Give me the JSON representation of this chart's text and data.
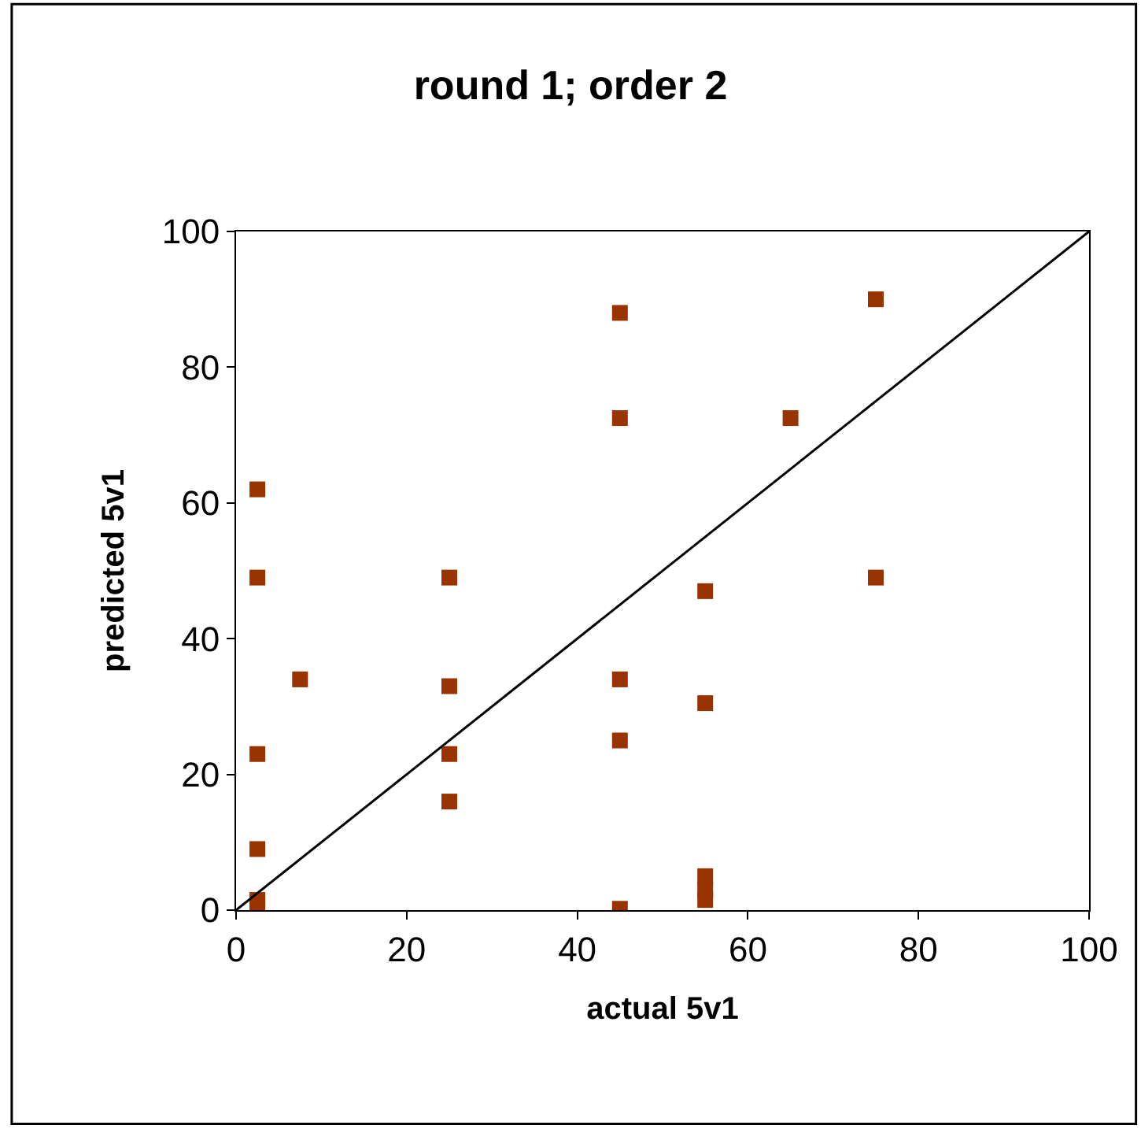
{
  "chart_data": {
    "type": "scatter",
    "title": "round 1; order 2",
    "xlabel": "actual 5v1",
    "ylabel": "predicted 5v1",
    "xlim": [
      0,
      100
    ],
    "ylim": [
      0,
      100
    ],
    "xticks": [
      0,
      20,
      40,
      60,
      80,
      100
    ],
    "yticks": [
      0,
      20,
      40,
      60,
      80,
      100
    ],
    "grid": false,
    "marker": "square",
    "series": [
      {
        "color": "#993300",
        "x": [
          2.5,
          2.5,
          2.5,
          2.5,
          2.5,
          2.5,
          7.5,
          25,
          25,
          25,
          25,
          45,
          45,
          45,
          45,
          45,
          55,
          55,
          55,
          55,
          55,
          65,
          75,
          75
        ],
        "values": [
          62,
          49,
          23,
          9,
          1.5,
          0.5,
          34,
          49,
          33,
          23,
          16,
          88,
          72.5,
          34,
          25,
          0.2,
          47,
          30.5,
          5,
          3,
          1.5,
          72.5,
          90,
          49
        ]
      },
      {
        "type": "line",
        "color": "#000000",
        "marker": "none",
        "x": [
          0,
          100
        ],
        "values": [
          0,
          100
        ]
      }
    ]
  }
}
